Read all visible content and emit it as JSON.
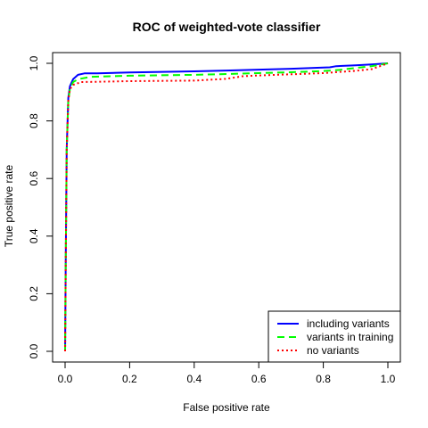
{
  "chart_data": {
    "type": "line",
    "title": "ROC of weighted-vote classifier",
    "xlabel": "False positive rate",
    "ylabel": "True positive rate",
    "xlim": [
      0,
      1
    ],
    "ylim": [
      0,
      1
    ],
    "x_ticks": [
      "0.0",
      "0.2",
      "0.4",
      "0.6",
      "0.8",
      "1.0"
    ],
    "y_ticks": [
      "0.0",
      "0.2",
      "0.4",
      "0.6",
      "0.8",
      "1.0"
    ],
    "grid": false,
    "legend_position": "bottom-right",
    "series": [
      {
        "name": "including variants",
        "color": "#0000FF",
        "dash": "solid",
        "points": [
          [
            0.0,
            0.0
          ],
          [
            0.002,
            0.3
          ],
          [
            0.005,
            0.7
          ],
          [
            0.01,
            0.88
          ],
          [
            0.015,
            0.92
          ],
          [
            0.025,
            0.945
          ],
          [
            0.04,
            0.96
          ],
          [
            0.06,
            0.965
          ],
          [
            0.1,
            0.965
          ],
          [
            0.2,
            0.968
          ],
          [
            0.4,
            0.972
          ],
          [
            0.5,
            0.975
          ],
          [
            0.6,
            0.978
          ],
          [
            0.7,
            0.981
          ],
          [
            0.8,
            0.985
          ],
          [
            0.82,
            0.986
          ],
          [
            0.84,
            0.99
          ],
          [
            0.9,
            0.993
          ],
          [
            0.95,
            0.996
          ],
          [
            1.0,
            1.0
          ]
        ]
      },
      {
        "name": "variants in training",
        "color": "#00FF00",
        "dash": "dashed",
        "points": [
          [
            0.0,
            0.0
          ],
          [
            0.002,
            0.3
          ],
          [
            0.005,
            0.7
          ],
          [
            0.01,
            0.87
          ],
          [
            0.015,
            0.91
          ],
          [
            0.025,
            0.935
          ],
          [
            0.04,
            0.945
          ],
          [
            0.08,
            0.953
          ],
          [
            0.2,
            0.957
          ],
          [
            0.4,
            0.96
          ],
          [
            0.5,
            0.963
          ],
          [
            0.6,
            0.966
          ],
          [
            0.7,
            0.969
          ],
          [
            0.8,
            0.973
          ],
          [
            0.85,
            0.977
          ],
          [
            0.9,
            0.984
          ],
          [
            0.95,
            0.99
          ],
          [
            1.0,
            1.0
          ]
        ]
      },
      {
        "name": "no variants",
        "color": "#FF0000",
        "dash": "dotted",
        "points": [
          [
            0.0,
            0.0
          ],
          [
            0.002,
            0.3
          ],
          [
            0.005,
            0.7
          ],
          [
            0.01,
            0.87
          ],
          [
            0.015,
            0.91
          ],
          [
            0.025,
            0.925
          ],
          [
            0.05,
            0.935
          ],
          [
            0.1,
            0.936
          ],
          [
            0.2,
            0.938
          ],
          [
            0.4,
            0.94
          ],
          [
            0.5,
            0.946
          ],
          [
            0.55,
            0.955
          ],
          [
            0.6,
            0.958
          ],
          [
            0.7,
            0.962
          ],
          [
            0.8,
            0.966
          ],
          [
            0.85,
            0.97
          ],
          [
            0.9,
            0.974
          ],
          [
            0.95,
            0.98
          ],
          [
            1.0,
            1.0
          ]
        ]
      }
    ]
  }
}
